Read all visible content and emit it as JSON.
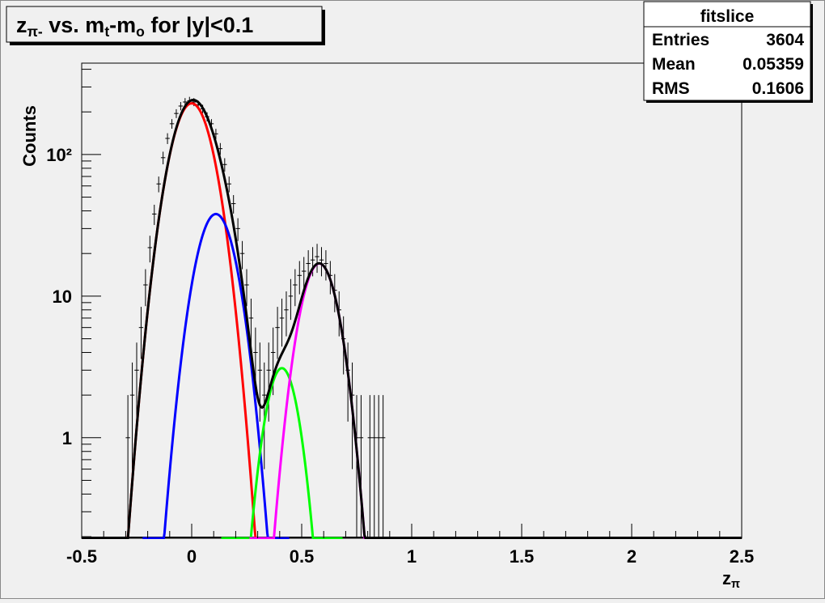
{
  "chart_data": {
    "type": "histogram",
    "title": [
      {
        "text": "z"
      },
      {
        "text": "π-",
        "sub": true
      },
      {
        "text": " vs. m"
      },
      {
        "text": "t",
        "sub": true
      },
      {
        "text": "-m"
      },
      {
        "text": "o",
        "sub": true
      },
      {
        "text": " for |y|<0.1"
      }
    ],
    "x_label": [
      {
        "text": "z"
      },
      {
        "text": "π",
        "sub": true
      }
    ],
    "y_label": "Counts",
    "xlim": [
      -0.5,
      2.5
    ],
    "ylim": [
      0.195,
      442
    ],
    "log_y": true,
    "xticks": [
      -0.5,
      0,
      0.5,
      1,
      1.5,
      2,
      2.5
    ],
    "xminorticks": [
      -0.4,
      -0.3,
      -0.2,
      -0.1,
      0.1,
      0.2,
      0.3,
      0.4,
      0.6,
      0.7,
      0.8,
      0.9,
      1.1,
      1.2,
      1.3,
      1.4,
      1.6,
      1.7,
      1.8,
      1.9,
      2.1,
      2.2,
      2.3,
      2.4
    ],
    "yticks": [
      1,
      10,
      {
        "value": 100,
        "label": "10²"
      }
    ],
    "yminorticks": [
      0.2,
      0.3,
      0.4,
      0.5,
      0.6,
      0.7,
      0.8,
      0.9,
      2,
      3,
      4,
      5,
      6,
      7,
      8,
      9,
      20,
      30,
      40,
      50,
      60,
      70,
      80,
      90,
      200,
      300,
      400
    ],
    "color": "#000000",
    "bins": [
      -0.3,
      -0.28,
      -0.26,
      -0.24,
      -0.22,
      -0.2,
      -0.18,
      -0.16,
      -0.14,
      -0.12,
      -0.1,
      -0.08,
      -0.06,
      -0.04,
      -0.02,
      0,
      0.02,
      0.04,
      0.06,
      0.08,
      0.1,
      0.12,
      0.14,
      0.16,
      0.18,
      0.2,
      0.22,
      0.24,
      0.26,
      0.28,
      0.3,
      0.32,
      0.34,
      0.36,
      0.38,
      0.4,
      0.42,
      0.44,
      0.46,
      0.48,
      0.5,
      0.52,
      0.54,
      0.56,
      0.58,
      0.6,
      0.62,
      0.64,
      0.66,
      0.68,
      0.7,
      0.72,
      0.74,
      0.76,
      0.78,
      0.8,
      0.82,
      0.84,
      0.86,
      0.88,
      0.9
    ],
    "values": [
      1,
      2,
      3,
      6,
      12,
      22,
      38,
      62,
      95,
      130,
      165,
      195,
      220,
      235,
      240,
      235,
      225,
      210,
      185,
      165,
      140,
      110,
      85,
      62,
      45,
      30,
      20,
      12,
      7,
      4,
      3,
      2,
      3,
      4,
      6,
      7,
      8,
      10,
      12,
      14,
      15,
      17,
      18,
      19,
      18,
      17,
      14,
      11,
      8,
      5,
      3,
      2,
      1,
      1,
      0,
      1,
      1,
      1,
      1,
      0
    ],
    "errors": [
      1,
      1.4,
      1.7,
      2.4,
      3.5,
      4.7,
      6.2,
      7.9,
      9.7,
      11.4,
      12.8,
      14,
      14.8,
      15.3,
      15.5,
      15.3,
      15,
      14.5,
      13.6,
      12.8,
      11.8,
      10.5,
      9.2,
      7.9,
      6.7,
      5.5,
      4.5,
      3.5,
      2.6,
      2,
      1.7,
      1.4,
      1.7,
      2,
      2.4,
      2.6,
      2.8,
      3.2,
      3.5,
      3.7,
      3.9,
      4.1,
      4.2,
      4.4,
      4.2,
      4.1,
      3.7,
      3.3,
      2.8,
      2.2,
      1.7,
      1.4,
      1,
      1,
      0,
      1,
      1,
      1,
      1,
      0
    ],
    "fits": [
      {
        "color": "#ff0000",
        "amplitude": 230,
        "mean": 0,
        "sigma": 0.077
      },
      {
        "color": "#0000ff",
        "amplitude": 38,
        "mean": 0.11,
        "sigma": 0.0725
      },
      {
        "color": "#00ff00",
        "amplitude": 3.1,
        "mean": 0.41,
        "sigma": 0.06
      },
      {
        "color": "#ff00ff",
        "amplitude": 17,
        "mean": 0.58,
        "sigma": 0.069
      }
    ],
    "total_fit_color": "#000000",
    "stats": {
      "title": "fitslice",
      "rows": [
        [
          "Entries",
          "3604"
        ],
        [
          "Mean",
          "0.05359"
        ],
        [
          "RMS",
          "0.1606"
        ]
      ]
    }
  }
}
